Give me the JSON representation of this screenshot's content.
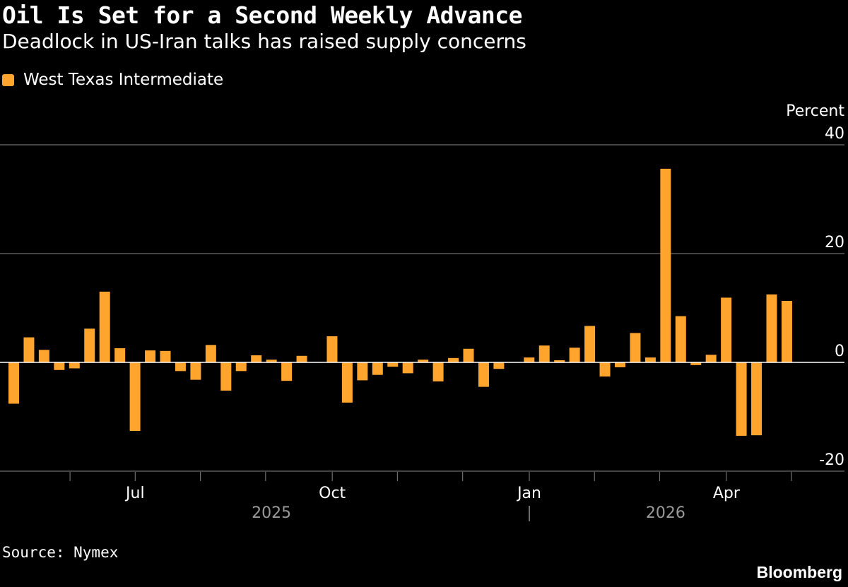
{
  "title": "Oil Is Set for a Second Weekly Advance",
  "subtitle": "Deadlock in US-Iran talks has raised supply concerns",
  "source": "Source: Nymex",
  "brand": "Bloomberg",
  "colors": {
    "background": "#000000",
    "bar": "#ffa42c",
    "grid": "#6e6e6e",
    "zero_line": "#ffffff",
    "axis_text": "#ffffff",
    "year_text": "#9a9a9a"
  },
  "chart_data": {
    "type": "bar",
    "title": "Oil Is Set for a Second Weekly Advance",
    "subtitle": "Deadlock in US-Iran talks has raised supply concerns",
    "ylabel": "Percent",
    "ylim": [
      -20,
      40
    ],
    "yticks": [
      40,
      20,
      0,
      -20
    ],
    "grid": true,
    "legend_position": "top-left",
    "series": [
      {
        "name": "West Texas Intermediate",
        "values": [
          -7.6,
          4.6,
          2.3,
          -1.4,
          -1.1,
          6.2,
          13.0,
          2.6,
          -12.6,
          2.2,
          2.1,
          -1.6,
          -3.2,
          3.2,
          -5.2,
          -1.6,
          1.3,
          0.5,
          -3.4,
          1.2,
          0,
          4.8,
          -7.4,
          -3.3,
          -2.3,
          -0.8,
          -2.0,
          0.5,
          -3.5,
          0.8,
          2.5,
          -4.5,
          -1.2,
          0,
          0.9,
          3.1,
          0.4,
          2.7,
          6.7,
          -2.6,
          -0.9,
          5.4,
          0.9,
          35.6,
          8.5,
          -0.5,
          1.4,
          11.9,
          -13.5,
          -13.4,
          12.5,
          11.3
        ]
      }
    ],
    "x_tick_labels": [
      {
        "week_index": 8.5,
        "label": "Jul"
      },
      {
        "week_index": 21.5,
        "label": "Oct"
      },
      {
        "week_index": 34.5,
        "label": "Jan"
      },
      {
        "week_index": 47.5,
        "label": "Apr"
      }
    ],
    "year_labels": [
      {
        "week_index": 17,
        "label": "2025"
      },
      {
        "week_index": 43,
        "label": "2026"
      }
    ]
  }
}
